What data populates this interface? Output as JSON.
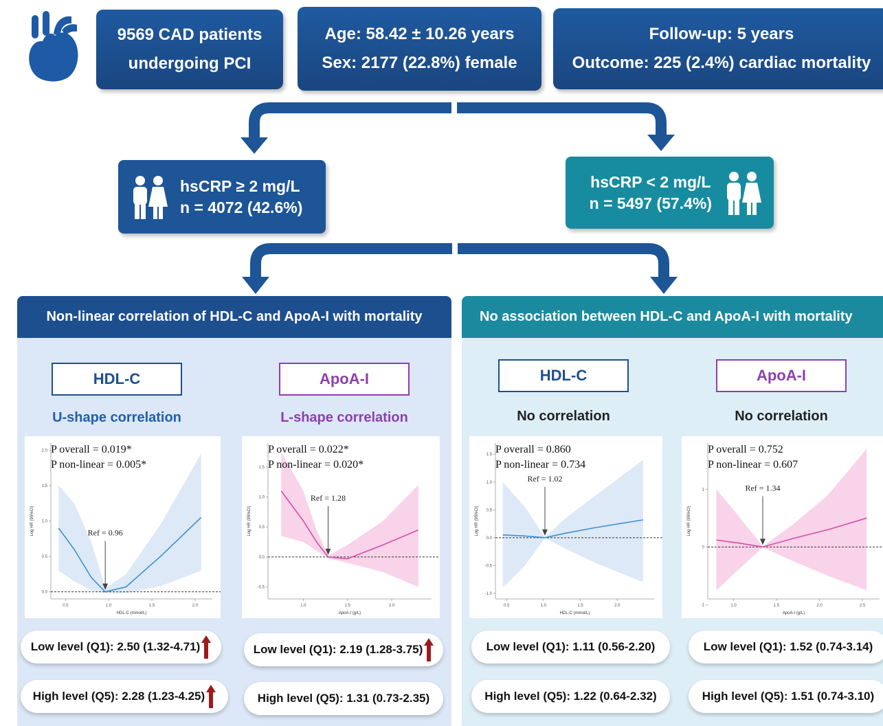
{
  "header": {
    "boxes": [
      {
        "lines": [
          "9569 CAD patients",
          "undergoing PCI"
        ]
      },
      {
        "lines": [
          "Age: 58.42 ± 10.26 years",
          "Sex: 2177 (22.8%) female"
        ]
      },
      {
        "lines": [
          "Follow-up: 5 years",
          "Outcome: 225 (2.4%) cardiac mortality"
        ]
      }
    ]
  },
  "groups": [
    {
      "lines": [
        "hsCRP ≥ 2 mg/L",
        "n = 4072 (42.6%)"
      ]
    },
    {
      "lines": [
        "hsCRP < 2 mg/L",
        "n = 5497 (57.4%)"
      ]
    }
  ],
  "panels": [
    {
      "title": "Non-linear correlation of HDL-C and ApoA-I with mortality",
      "markers": [
        {
          "label": "HDL-C",
          "finding": "U-shape correlation",
          "low": "Low level (Q1): 2.50 (1.32-4.71)",
          "high": "High level (Q5): 2.28 (1.23-4.25)",
          "plot": {
            "type": "line",
            "p_overall": "P overall = 0.019*",
            "p_nonlinear": "P non-linear = 0.005*",
            "ref": "Ref = 0.96",
            "xlabel": "HDL-C (mmol/L)",
            "ylabel": "Log HR (95%CI)",
            "color": "#3d8fcf",
            "band_color": "#dde9f6",
            "xlim": [
              0.33,
              2.2
            ],
            "ylim": [
              -0.1,
              2.1
            ],
            "xticks": [
              0.5,
              {
                "value": 1.0,
                "label": "1.0"
              },
              1.5,
              {
                "value": 2.0,
                "label": "2.0"
              }
            ],
            "yticks": [
              {
                "value": 0,
                "label": "0.0"
              },
              0.5,
              {
                "value": 1.0,
                "label": "1.0"
              },
              1.5,
              {
                "value": 2.0,
                "label": "2.0"
              }
            ],
            "x": [
              0.42,
              0.6,
              0.8,
              0.96,
              1.2,
              1.6,
              2.07
            ],
            "values": [
              0.9,
              0.6,
              0.2,
              0,
              0.07,
              0.5,
              1.05
            ],
            "upper": [
              1.5,
              1.25,
              0.7,
              0.05,
              0.25,
              0.95,
              1.95
            ],
            "lower": [
              0.3,
              0.15,
              0.02,
              -0.02,
              -0.02,
              0.08,
              0.3
            ]
          }
        },
        {
          "label": "ApoA-I",
          "finding": "L-shape correlation",
          "low": "Low level (Q1): 2.19 (1.28-3.75)",
          "high": "High level (Q5): 1.31 (0.73-2.35)",
          "plot": {
            "type": "line",
            "p_overall": "P overall = 0.022*",
            "p_nonlinear": "P non-linear = 0.020*",
            "ref": "Ref = 1.28",
            "xlabel": "ApoA-I (g/L)",
            "ylabel": "Log HR (95%CI)",
            "color": "#d24fa6",
            "band_color": "#f9d3ea",
            "xlim": [
              0.6,
              2.45
            ],
            "ylim": [
              -0.7,
              1.9
            ],
            "xticks": [
              {
                "value": 1.0,
                "label": "1.0"
              },
              1.5,
              {
                "value": 2.0,
                "label": "2.0"
              }
            ],
            "yticks": [
              -0.5,
              {
                "value": 0,
                "label": "0.0"
              },
              0.5,
              {
                "value": 1.0,
                "label": "1.0"
              },
              1.5
            ],
            "x": [
              0.75,
              1.0,
              1.15,
              1.28,
              1.5,
              1.9,
              2.3
            ],
            "values": [
              1.1,
              0.6,
              0.25,
              0,
              -0.03,
              0.2,
              0.45
            ],
            "upper": [
              1.75,
              1.1,
              0.45,
              0.02,
              0.2,
              0.6,
              1.2
            ],
            "lower": [
              0.35,
              0.25,
              0.1,
              -0.02,
              -0.1,
              -0.25,
              -0.5
            ]
          }
        }
      ]
    },
    {
      "title": "No association between HDL-C and ApoA-I with mortality",
      "markers": [
        {
          "label": "HDL-C",
          "finding": "No correlation",
          "low": "Low level (Q1): 1.11 (0.56-2.20)",
          "high": "High level (Q5): 1.22 (0.64-2.32)",
          "plot": {
            "type": "line",
            "p_overall": "P overall = 0.860",
            "p_nonlinear": "P non-linear = 0.734",
            "ref": "Ref = 1.02",
            "xlabel": "HDL-C (mmol/L)",
            "ylabel": "Log HR (95%CI)",
            "color": "#3d8fcf",
            "band_color": "#dde9f6",
            "xlim": [
              0.35,
              2.5
            ],
            "ylim": [
              -1.1,
              1.7
            ],
            "xticks": [
              0.5,
              {
                "value": 1.0,
                "label": "1.0"
              },
              1.5,
              {
                "value": 2.0,
                "label": "2.0"
              }
            ],
            "yticks": [
              {
                "value": -1.0,
                "label": "-1.0"
              },
              -0.5,
              {
                "value": 0,
                "label": "0.0"
              },
              0.5,
              {
                "value": 1.0,
                "label": "1.0"
              },
              1.5
            ],
            "x": [
              0.45,
              0.75,
              1.02,
              1.3,
              1.7,
              2.35
            ],
            "values": [
              0.05,
              0.03,
              0,
              0.08,
              0.18,
              0.32
            ],
            "upper": [
              1.0,
              0.55,
              0.01,
              0.35,
              0.75,
              1.4
            ],
            "lower": [
              -0.9,
              -0.5,
              -0.01,
              -0.2,
              -0.45,
              -0.8
            ]
          }
        },
        {
          "label": "ApoA-I",
          "finding": "No correlation",
          "low": "Low level (Q1): 1.52 (0.74-3.14)",
          "high": "High level (Q5): 1.51 (0.74-3.10)",
          "plot": {
            "type": "line",
            "p_overall": "P overall = 0.752",
            "p_nonlinear": "P non-linear = 0.607",
            "ref": "Ref = 1.34",
            "xlabel": "ApoA-I (g/L)",
            "ylabel": "Log HR (95%CI)",
            "color": "#d24fa6",
            "band_color": "#f9d3ea",
            "xlim": [
              0.7,
              2.7
            ],
            "ylim": [
              -0.9,
              1.8
            ],
            "xticks": [
              {
                "value": 1.0,
                "label": "1.0"
              },
              1.5,
              {
                "value": 2.0,
                "label": "2.0"
              },
              2.5
            ],
            "yticks": [
              -1,
              0,
              1
            ],
            "x": [
              0.8,
              1.05,
              1.34,
              1.7,
              2.1,
              2.55
            ],
            "values": [
              0.12,
              0.07,
              0,
              0.15,
              0.3,
              0.5
            ],
            "upper": [
              1.0,
              0.55,
              0.01,
              0.4,
              0.9,
              1.7
            ],
            "lower": [
              -0.75,
              -0.4,
              -0.01,
              -0.25,
              -0.5,
              -0.75
            ]
          }
        }
      ]
    }
  ]
}
